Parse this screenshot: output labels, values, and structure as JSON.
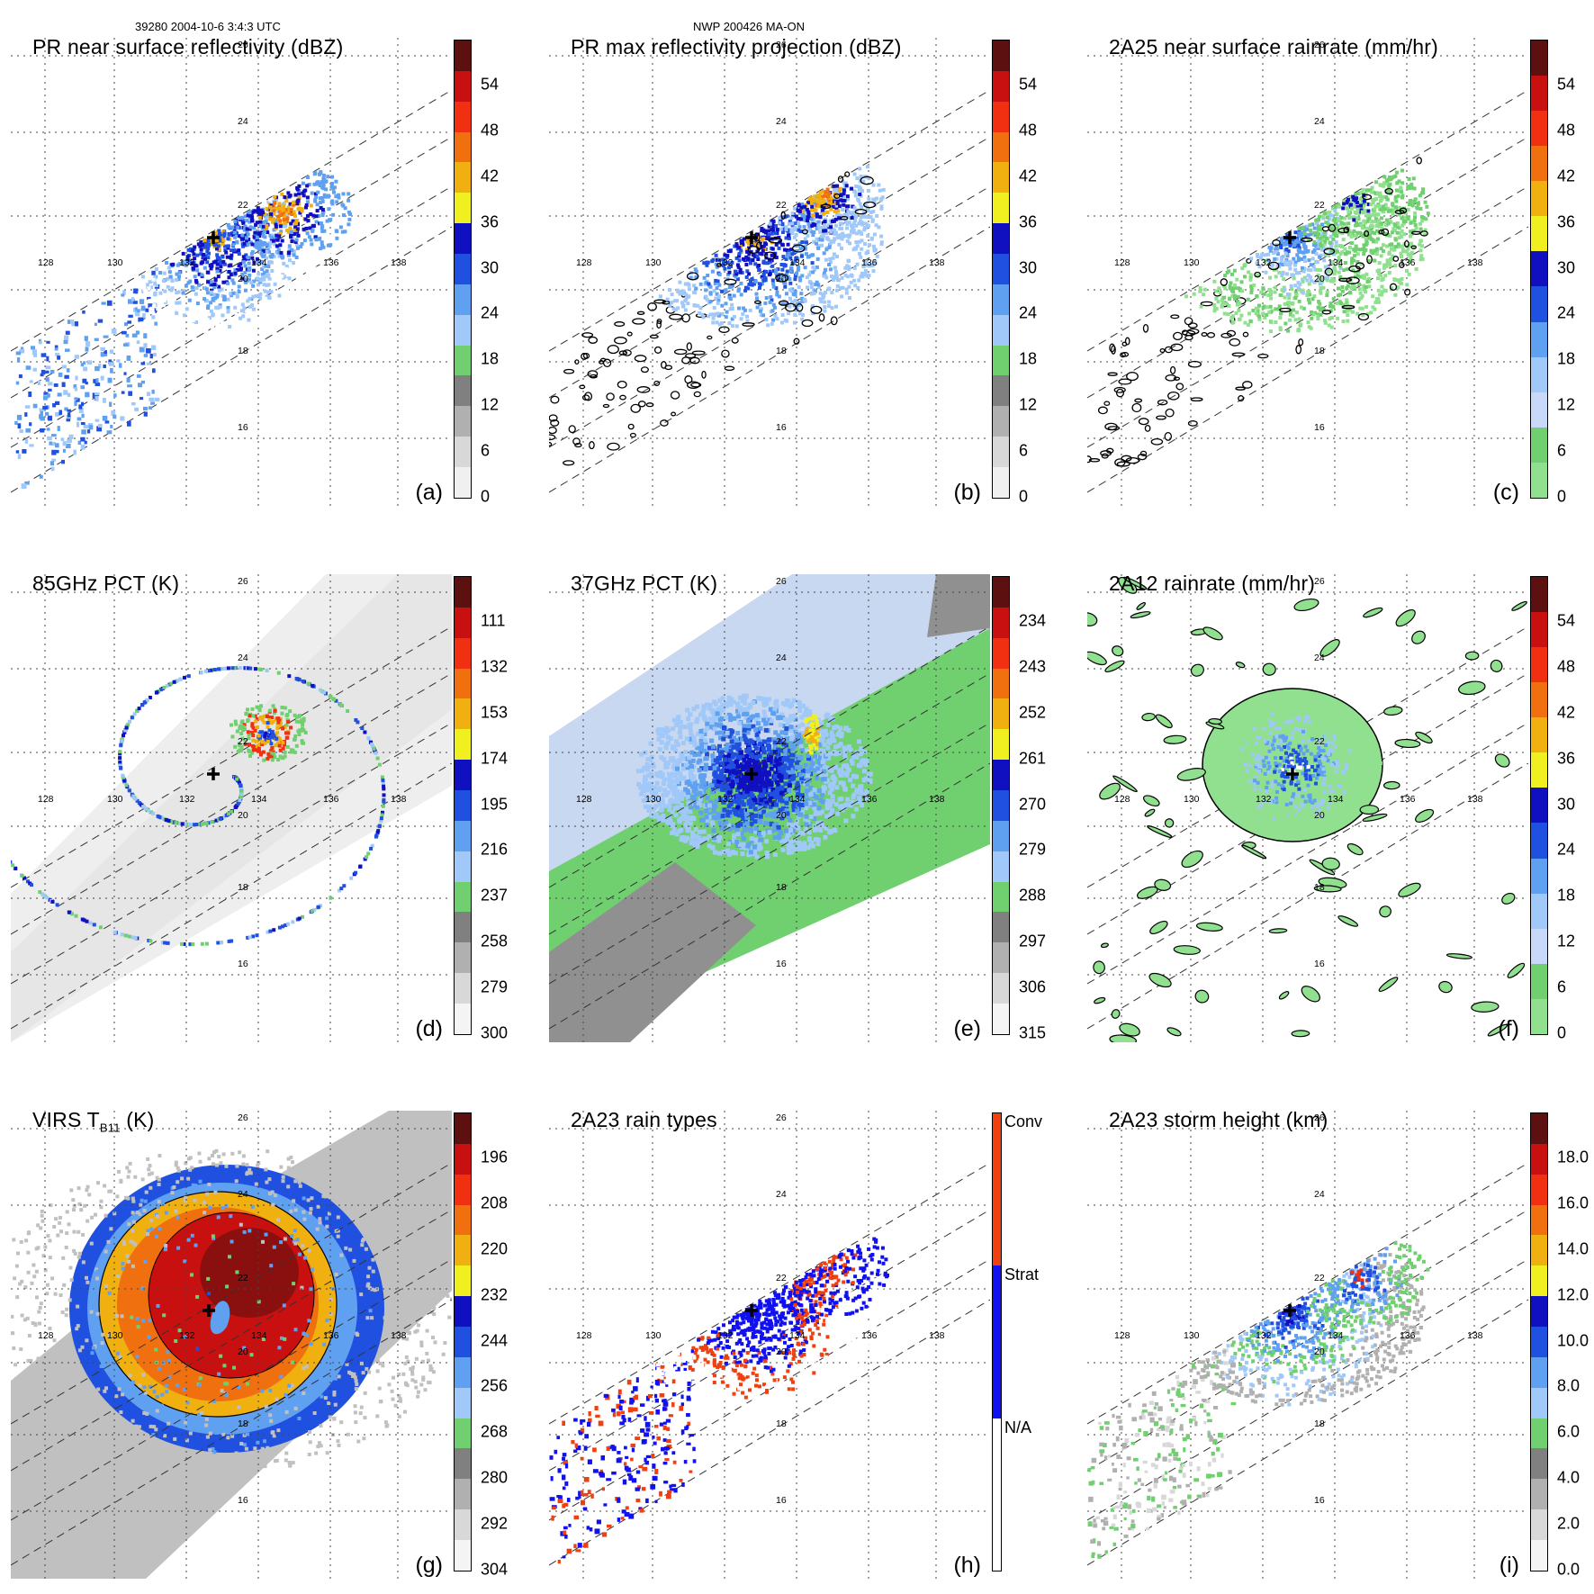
{
  "header": {
    "left": "39280 2004-10-6 3:4:3 UTC",
    "right": "NWP 200426 MA-ON"
  },
  "axes": {
    "lon_labels": [
      "128",
      "130",
      "132",
      "134",
      "136",
      "138"
    ],
    "lat_labels": [
      "16",
      "18",
      "20",
      "22",
      "24",
      "26"
    ]
  },
  "panels": [
    {
      "id": "a",
      "title": "PR near surface reflectivity (dBZ)",
      "label": "(a)",
      "colorbar": {
        "ticks": [
          "54",
          "48",
          "42",
          "36",
          "30",
          "24",
          "18",
          "12",
          "6",
          "0"
        ],
        "colors": [
          "#5c1010",
          "#c81010",
          "#f03010",
          "#f07010",
          "#f0b010",
          "#f0f020",
          "#1010c0",
          "#2050e0",
          "#60a0f0",
          "#a0c8f8",
          "#70d070",
          "#808080",
          "#b0b0b0",
          "#d8d8d8",
          "#f0f0f0"
        ]
      }
    },
    {
      "id": "b",
      "title": "PR max reflectivity projection (dBZ)",
      "label": "(b)",
      "colorbar": {
        "ticks": [
          "54",
          "48",
          "42",
          "36",
          "30",
          "24",
          "18",
          "12",
          "6",
          "0"
        ],
        "colors": [
          "#5c1010",
          "#c81010",
          "#f03010",
          "#f07010",
          "#f0b010",
          "#f0f020",
          "#1010c0",
          "#2050e0",
          "#60a0f0",
          "#a0c8f8",
          "#70d070",
          "#808080",
          "#b0b0b0",
          "#d8d8d8",
          "#f0f0f0"
        ]
      }
    },
    {
      "id": "c",
      "title": "2A25 near surface rainrate (mm/hr)",
      "label": "(c)",
      "colorbar": {
        "ticks": [
          "54",
          "48",
          "42",
          "36",
          "30",
          "24",
          "18",
          "12",
          "6",
          "0"
        ],
        "colors": [
          "#5c1010",
          "#c81010",
          "#f03010",
          "#f07010",
          "#f0b010",
          "#f0f020",
          "#1010c0",
          "#2050e0",
          "#60a0f0",
          "#a0c8f8",
          "#c8d8f8",
          "#70d070",
          "#90e090"
        ]
      }
    },
    {
      "id": "d",
      "title": "85GHz PCT (K)",
      "label": "(d)",
      "colorbar": {
        "ticks": [
          "111",
          "132",
          "153",
          "174",
          "195",
          "216",
          "237",
          "258",
          "279",
          "300"
        ],
        "colors": [
          "#5c1010",
          "#c81010",
          "#f03010",
          "#f07010",
          "#f0b010",
          "#f0f020",
          "#1010c0",
          "#2050e0",
          "#60a0f0",
          "#a0c8f8",
          "#70d070",
          "#808080",
          "#b0b0b0",
          "#d8d8d8",
          "#f4f4f4"
        ]
      }
    },
    {
      "id": "e",
      "title": "37GHz PCT (K)",
      "label": "(e)",
      "colorbar": {
        "ticks": [
          "234",
          "243",
          "252",
          "261",
          "270",
          "279",
          "288",
          "297",
          "306",
          "315"
        ],
        "colors": [
          "#5c1010",
          "#c81010",
          "#f03010",
          "#f07010",
          "#f0b010",
          "#f0f020",
          "#1010c0",
          "#2050e0",
          "#60a0f0",
          "#a0c8f8",
          "#70d070",
          "#808080",
          "#b0b0b0",
          "#d8d8d8",
          "#f4f4f4"
        ]
      }
    },
    {
      "id": "f",
      "title": "2A12 rainrate (mm/hr)",
      "label": "(f)",
      "colorbar": {
        "ticks": [
          "54",
          "48",
          "42",
          "36",
          "30",
          "24",
          "18",
          "12",
          "6",
          "0"
        ],
        "colors": [
          "#5c1010",
          "#c81010",
          "#f03010",
          "#f07010",
          "#f0b010",
          "#f0f020",
          "#1010c0",
          "#2050e0",
          "#60a0f0",
          "#a0c8f8",
          "#c8d8f8",
          "#70d070",
          "#90e090"
        ]
      }
    },
    {
      "id": "g",
      "title": "VIRS T",
      "title_sub": "B11",
      "title_end": " (K)",
      "label": "(g)",
      "colorbar": {
        "ticks": [
          "196",
          "208",
          "220",
          "232",
          "244",
          "256",
          "268",
          "280",
          "292",
          "304"
        ],
        "colors": [
          "#5c1010",
          "#c81010",
          "#f03010",
          "#f07010",
          "#f0b010",
          "#f0f020",
          "#1010c0",
          "#2050e0",
          "#60a0f0",
          "#a0c8f8",
          "#70d070",
          "#808080",
          "#b0b0b0",
          "#d8d8d8",
          "#f4f4f4"
        ]
      }
    },
    {
      "id": "h",
      "title": "2A23 rain types",
      "label": "(h)",
      "colorbar": {
        "ticks": [
          "Conv",
          "Strat",
          "N/A"
        ],
        "colors": [
          "#f04010",
          "#1010f0",
          "#ffffff"
        ]
      }
    },
    {
      "id": "i",
      "title": "2A23 storm height (km)",
      "label": "(i)",
      "colorbar": {
        "ticks": [
          "18.0",
          "16.0",
          "14.0",
          "12.0",
          "10.0",
          "8.0",
          "6.0",
          "4.0",
          "2.0",
          "0.0"
        ],
        "colors": [
          "#5c1010",
          "#c81010",
          "#f03010",
          "#f07010",
          "#f0b010",
          "#f0f020",
          "#1010c0",
          "#2050e0",
          "#60a0f0",
          "#a0c8f8",
          "#70d070",
          "#808080",
          "#b0b0b0",
          "#d8d8d8",
          "#f4f4f4"
        ]
      }
    }
  ]
}
